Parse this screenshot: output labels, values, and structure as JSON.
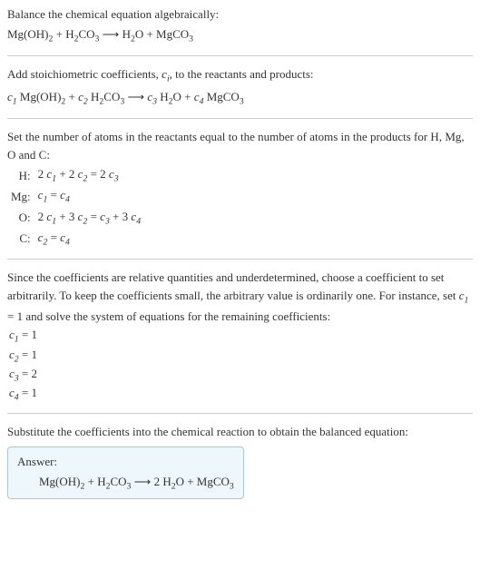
{
  "section1": {
    "title": "Balance the chemical equation algebraically:",
    "equation_parts": [
      "Mg(OH)",
      "2",
      " + H",
      "2",
      "CO",
      "3",
      "  ",
      "⟶",
      "  H",
      "2",
      "O + MgCO",
      "3"
    ]
  },
  "section2": {
    "intro_parts": [
      "Add stoichiometric coefficients, ",
      "c",
      "i",
      ", to the reactants and products:"
    ],
    "equation_parts": [
      "c",
      "1",
      " Mg(OH)",
      "2",
      " + ",
      "c",
      "2",
      " H",
      "2",
      "CO",
      "3",
      "  ",
      "⟶",
      "  ",
      "c",
      "3",
      " H",
      "2",
      "O + ",
      "c",
      "4",
      " MgCO",
      "3"
    ]
  },
  "section3": {
    "intro": "Set the number of atoms in the reactants equal to the number of atoms in the products for H, Mg, O and C:",
    "rows": [
      {
        "label": "H:",
        "eq": [
          "2 ",
          "c",
          "1",
          " + 2 ",
          "c",
          "2",
          " = 2 ",
          "c",
          "3"
        ]
      },
      {
        "label": "Mg:",
        "eq": [
          "c",
          "1",
          " = ",
          "c",
          "4"
        ]
      },
      {
        "label": "O:",
        "eq": [
          "2 ",
          "c",
          "1",
          " + 3 ",
          "c",
          "2",
          " = ",
          "c",
          "3",
          " + 3 ",
          "c",
          "4"
        ]
      },
      {
        "label": "C:",
        "eq": [
          "c",
          "2",
          " = ",
          "c",
          "4"
        ]
      }
    ]
  },
  "section4": {
    "intro_parts": [
      "Since the coefficients are relative quantities and underdetermined, choose a coefficient to set arbitrarily. To keep the coefficients small, the arbitrary value is ordinarily one. For instance, set ",
      "c",
      "1",
      " = 1 and solve the system of equations for the remaining coefficients:"
    ],
    "coeffs": [
      [
        "c",
        "1",
        " = 1"
      ],
      [
        "c",
        "2",
        " = 1"
      ],
      [
        "c",
        "3",
        " = 2"
      ],
      [
        "c",
        "4",
        " = 1"
      ]
    ]
  },
  "section5": {
    "intro": "Substitute the coefficients into the chemical reaction to obtain the balanced equation:",
    "answer_label": "Answer:",
    "answer_parts": [
      "Mg(OH)",
      "2",
      " + H",
      "2",
      "CO",
      "3",
      "  ",
      "⟶",
      "  2 H",
      "2",
      "O + MgCO",
      "3"
    ]
  }
}
